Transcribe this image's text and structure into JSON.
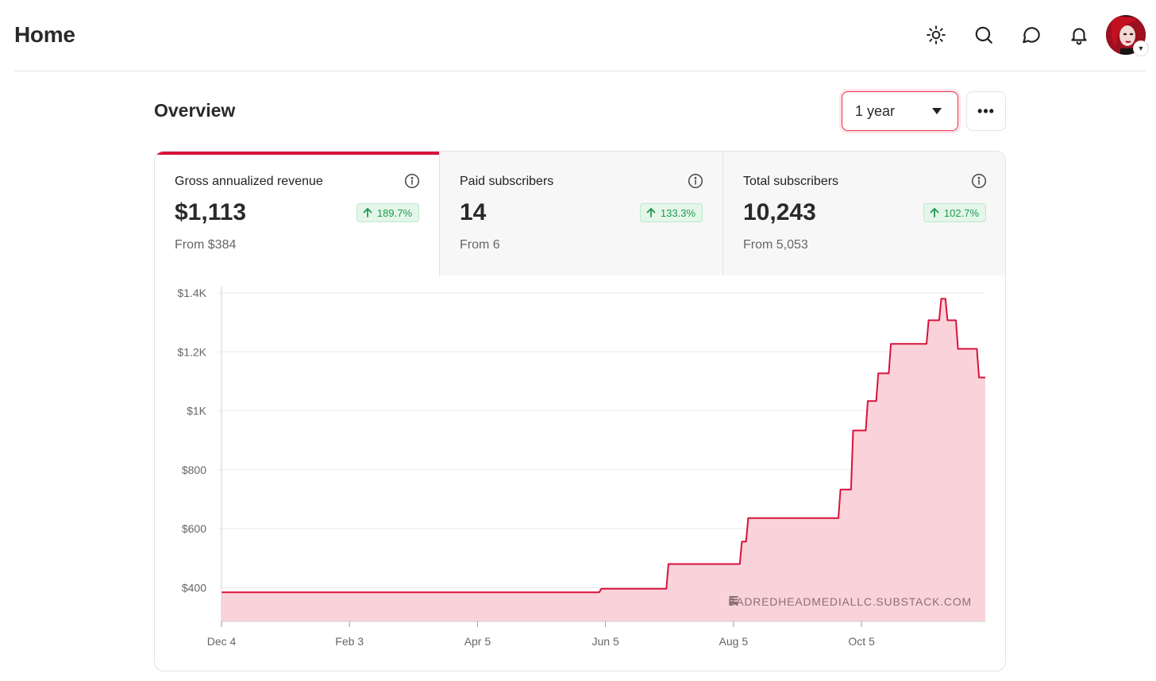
{
  "header": {
    "title": "Home",
    "icons": [
      "sun-icon",
      "search-icon",
      "chat-icon",
      "bell-icon"
    ]
  },
  "overview": {
    "title": "Overview",
    "range_selected": "1 year",
    "more_label": "•••"
  },
  "stats": [
    {
      "label": "Gross annualized revenue",
      "value": "$1,113",
      "change": "189.7%",
      "from": "From $384",
      "active": true
    },
    {
      "label": "Paid subscribers",
      "value": "14",
      "change": "133.3%",
      "from": "From 6",
      "active": false
    },
    {
      "label": "Total subscribers",
      "value": "10,243",
      "change": "102.7%",
      "from": "From 5,053",
      "active": false
    }
  ],
  "colors": {
    "accent": "#d8123a",
    "area_fill": "#f9cbd4",
    "positive": "#1f9a4d",
    "positive_bg": "#e3f6e9"
  },
  "chart_data": {
    "type": "area",
    "title": "Gross annualized revenue",
    "xlabel": "",
    "ylabel": "",
    "ylim": [
      285,
      1400
    ],
    "yticks": [
      400,
      600,
      800,
      1000,
      1200,
      1400
    ],
    "ytick_labels": [
      "$400",
      "$600",
      "$800",
      "$1K",
      "$1.2K",
      "$1.4K"
    ],
    "xtick_labels": [
      "Dec 4",
      "Feb 3",
      "Apr 5",
      "Jun 5",
      "Aug 5",
      "Oct 5"
    ],
    "xtick_days": [
      0,
      61,
      122,
      183,
      244,
      305
    ],
    "xlim": [
      0,
      364
    ],
    "step": true,
    "series": [
      {
        "name": "Gross annualized revenue",
        "x": [
          0,
          180,
          181,
          212,
          213,
          247,
          248,
          250,
          251,
          294,
          295,
          300,
          301,
          307,
          308,
          312,
          313,
          318,
          319,
          336,
          337,
          342,
          343,
          345,
          346,
          350,
          351,
          360,
          361,
          364
        ],
        "y": [
          384,
          384,
          396,
          396,
          480,
          480,
          556,
          556,
          636,
          636,
          733,
          733,
          933,
          933,
          1033,
          1033,
          1127,
          1127,
          1227,
          1227,
          1307,
          1307,
          1380,
          1380,
          1307,
          1307,
          1210,
          1210,
          1113,
          1113
        ]
      }
    ],
    "watermark": "BADREDHEADMEDIALLC.SUBSTACK.COM"
  }
}
